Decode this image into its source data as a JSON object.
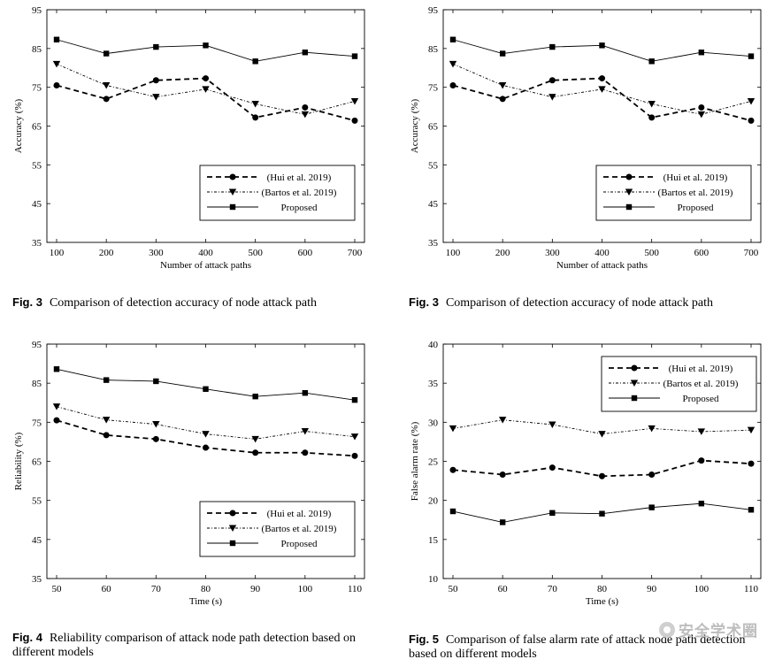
{
  "chart_data": [
    {
      "type": "line",
      "x": [
        100,
        200,
        300,
        400,
        500,
        600,
        700
      ],
      "xlabel": "Number of attack paths",
      "ylabel": "Accuracy (%)",
      "ylim": [
        35,
        95
      ],
      "yticks": [
        35,
        45,
        55,
        65,
        75,
        85,
        95
      ],
      "xticks": [
        100,
        200,
        300,
        400,
        500,
        600,
        700
      ],
      "legend_position": "bottom-right",
      "series": [
        {
          "name": "(Hui et al. 2019)",
          "style": "dashed",
          "marker": "circle",
          "values": [
            75.5,
            72.0,
            76.8,
            77.3,
            67.2,
            69.8,
            66.4
          ]
        },
        {
          "name": "(Bartos et al. 2019)",
          "style": "dashdot",
          "marker": "triangle-down",
          "values": [
            81.0,
            75.5,
            72.5,
            74.5,
            70.7,
            68.0,
            71.4
          ]
        },
        {
          "name": "Proposed",
          "style": "solid-thin",
          "marker": "square",
          "values": [
            87.3,
            83.7,
            85.4,
            85.8,
            81.7,
            84.0,
            83.0
          ]
        }
      ],
      "caption_label": "Fig. 3",
      "caption_text": "Comparison of detection accuracy of node attack path"
    },
    {
      "type": "line",
      "x": [
        100,
        200,
        300,
        400,
        500,
        600,
        700
      ],
      "xlabel": "Number of attack paths",
      "ylabel": "Accuracy (%)",
      "ylim": [
        35,
        95
      ],
      "yticks": [
        35,
        45,
        55,
        65,
        75,
        85,
        95
      ],
      "xticks": [
        100,
        200,
        300,
        400,
        500,
        600,
        700
      ],
      "legend_position": "bottom-right",
      "series": [
        {
          "name": "(Hui et al. 2019)",
          "style": "dashed",
          "marker": "circle",
          "values": [
            75.5,
            72.0,
            76.8,
            77.3,
            67.2,
            69.8,
            66.4
          ]
        },
        {
          "name": "(Bartos et al. 2019)",
          "style": "dashdot",
          "marker": "triangle-down",
          "values": [
            81.0,
            75.5,
            72.5,
            74.5,
            70.7,
            68.0,
            71.4
          ]
        },
        {
          "name": "Proposed",
          "style": "solid-thin",
          "marker": "square",
          "values": [
            87.3,
            83.7,
            85.4,
            85.8,
            81.7,
            84.0,
            83.0
          ]
        }
      ],
      "caption_label": "Fig. 3",
      "caption_text": "Comparison of detection accuracy of node attack path"
    },
    {
      "type": "line",
      "x": [
        50,
        60,
        70,
        80,
        90,
        100,
        110
      ],
      "xlabel": "Time (s)",
      "ylabel": "Reliability (%)",
      "ylim": [
        35,
        95
      ],
      "yticks": [
        35,
        45,
        55,
        65,
        75,
        85,
        95
      ],
      "xticks": [
        50,
        60,
        70,
        80,
        90,
        100,
        110
      ],
      "legend_position": "bottom-right",
      "series": [
        {
          "name": "(Hui et al. 2019)",
          "style": "dashed",
          "marker": "circle",
          "values": [
            75.5,
            71.7,
            70.7,
            68.5,
            67.2,
            67.2,
            66.4
          ]
        },
        {
          "name": "(Bartos et al. 2019)",
          "style": "dashdot",
          "marker": "triangle-down",
          "values": [
            79.0,
            75.6,
            74.5,
            72.0,
            70.7,
            72.7,
            71.3
          ]
        },
        {
          "name": "Proposed",
          "style": "solid-thin",
          "marker": "square",
          "values": [
            88.6,
            85.8,
            85.5,
            83.5,
            81.6,
            82.5,
            80.7
          ]
        }
      ],
      "caption_label": "Fig. 4",
      "caption_text": "Reliability comparison of attack node path detection based on different models"
    },
    {
      "type": "line",
      "x": [
        50,
        60,
        70,
        80,
        90,
        100,
        110
      ],
      "xlabel": "Time (s)",
      "ylabel": "False alarm rate (%)",
      "ylim": [
        10,
        40
      ],
      "yticks": [
        10,
        15,
        20,
        25,
        30,
        35,
        40
      ],
      "xticks": [
        50,
        60,
        70,
        80,
        90,
        100,
        110
      ],
      "legend_position": "top-right",
      "series": [
        {
          "name": "(Hui et al. 2019)",
          "style": "dashed",
          "marker": "circle",
          "values": [
            23.9,
            23.3,
            24.2,
            23.1,
            23.3,
            25.1,
            24.7
          ]
        },
        {
          "name": "(Bartos et al. 2019)",
          "style": "dashdot",
          "marker": "triangle-down",
          "values": [
            29.2,
            30.3,
            29.7,
            28.5,
            29.2,
            28.8,
            29.0
          ]
        },
        {
          "name": "Proposed",
          "style": "solid-thin",
          "marker": "square",
          "values": [
            18.6,
            17.2,
            18.4,
            18.3,
            19.1,
            19.6,
            18.8
          ]
        }
      ],
      "caption_label": "Fig. 5",
      "caption_text": "Comparison of false alarm rate of attack node path detection based on different models"
    }
  ],
  "watermark": {
    "icon": "wechat-icon",
    "text": "安全学术圈"
  }
}
